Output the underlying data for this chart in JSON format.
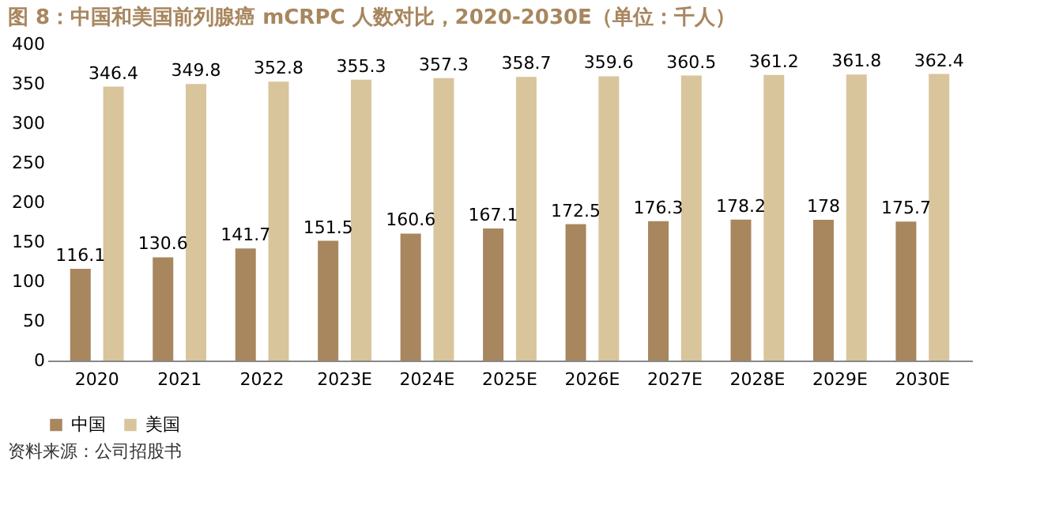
{
  "chart_data": {
    "type": "bar",
    "title": "图 8：中国和美国前列腺癌 mCRPC 人数对比，2020-2030E（单位：千人）",
    "categories": [
      "2020",
      "2021",
      "2022",
      "2023E",
      "2024E",
      "2025E",
      "2026E",
      "2027E",
      "2028E",
      "2029E",
      "2030E"
    ],
    "series": [
      {
        "name": "中国",
        "color": "#a8865e",
        "values": [
          116.1,
          130.6,
          141.7,
          151.5,
          160.6,
          167.1,
          172.5,
          176.3,
          178.2,
          178,
          175.7
        ]
      },
      {
        "name": "美国",
        "color": "#d9c59c",
        "values": [
          346.4,
          349.8,
          352.8,
          355.3,
          357.3,
          358.7,
          359.6,
          360.5,
          361.2,
          361.8,
          362.4
        ]
      }
    ],
    "ylim": [
      0,
      400
    ],
    "yticks": [
      0,
      50,
      100,
      150,
      200,
      250,
      300,
      350,
      400
    ],
    "grid": false,
    "legend": "bottom",
    "data_labels": true,
    "annotations": [
      "资料来源：公司招股书"
    ]
  }
}
